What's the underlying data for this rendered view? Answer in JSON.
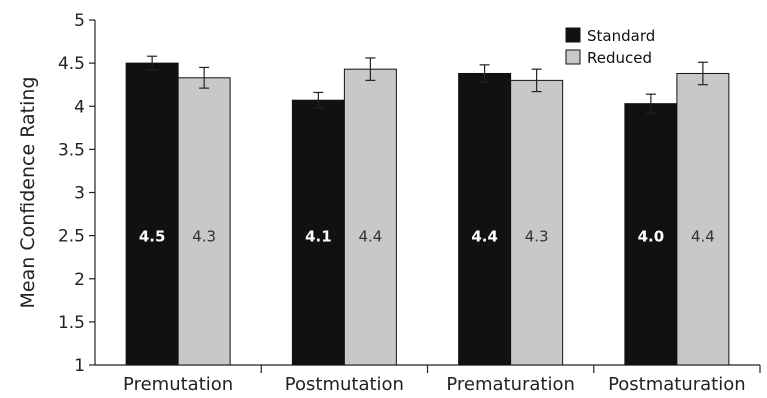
{
  "chart_data": {
    "type": "bar",
    "title": "",
    "xlabel": "",
    "ylabel": "Mean Confidence Rating",
    "ylim": [
      1,
      5
    ],
    "yticks": [
      "1",
      "1.5",
      "2",
      "2.5",
      "3",
      "3.5",
      "4",
      "4.5",
      "5"
    ],
    "categories": [
      "Premutation",
      "Postmutation",
      "Prematuration",
      "Postmaturation"
    ],
    "series": [
      {
        "name": "Standard",
        "color": "#111111",
        "values": [
          4.5,
          4.07,
          4.38,
          4.03
        ],
        "errors": [
          0.08,
          0.09,
          0.1,
          0.11
        ],
        "labels": [
          "4.5",
          "4.1",
          "4.4",
          "4.0"
        ]
      },
      {
        "name": "Reduced",
        "color": "#c8c8c8",
        "values": [
          4.33,
          4.43,
          4.3,
          4.38
        ],
        "errors": [
          0.12,
          0.13,
          0.13,
          0.13
        ],
        "labels": [
          "4.3",
          "4.4",
          "4.3",
          "4.4"
        ]
      }
    ],
    "legend": "top-right",
    "grid": false
  }
}
